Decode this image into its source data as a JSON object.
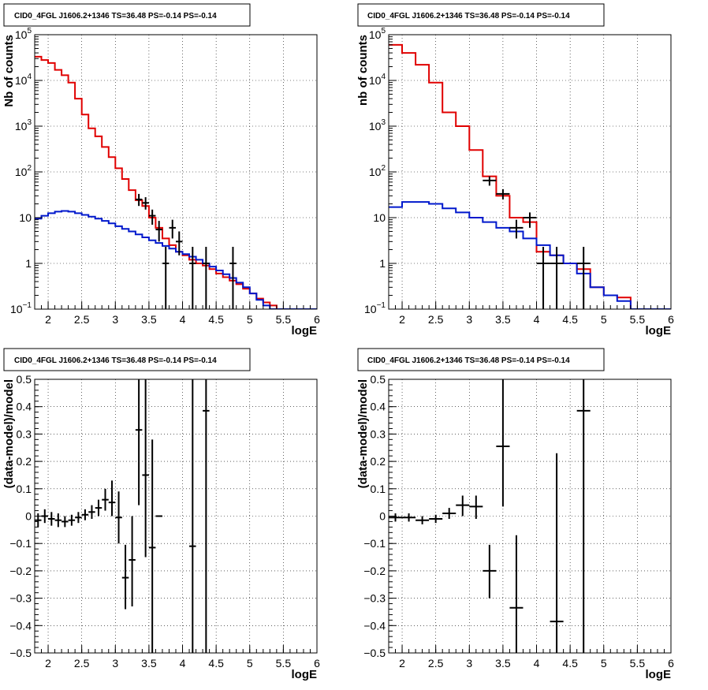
{
  "colors": {
    "model": "#e00000",
    "background": "#0018cc",
    "data": "#000000"
  },
  "charts": [
    {
      "kind": "spectrum",
      "title": "CID0_4FGL J1606.2+1346 TS=36.48 PS=-0.14 PS=-0.14",
      "xlabel": "logE",
      "ylabel": "Nb of counts",
      "xlim": [
        1.8,
        6.0
      ],
      "ylim": [
        0.1,
        100000
      ],
      "yscale": "log",
      "xticks": [
        "2",
        "2.5",
        "3",
        "3.5",
        "4",
        "4.5",
        "5",
        "5.5",
        "6"
      ],
      "yticks": [
        {
          "base": "10",
          "exp": "−1"
        },
        {
          "base": "1",
          "exp": ""
        },
        {
          "base": "10",
          "exp": ""
        },
        {
          "base": "10",
          "exp": "2"
        },
        {
          "base": "10",
          "exp": "3"
        },
        {
          "base": "10",
          "exp": "4"
        },
        {
          "base": "10",
          "exp": "5"
        }
      ]
    },
    {
      "kind": "spectrum",
      "title": "CID0_4FGL J1606.2+1346 TS=36.48 PS=-0.14 PS=-0.14",
      "xlabel": "logE",
      "ylabel": "nb of counts",
      "xlim": [
        1.8,
        6.0
      ],
      "ylim": [
        0.1,
        100000
      ],
      "yscale": "log",
      "xticks": [
        "2",
        "2.5",
        "3",
        "3.5",
        "4",
        "4.5",
        "5",
        "5.5",
        "6"
      ],
      "yticks": [
        {
          "base": "10",
          "exp": "−1"
        },
        {
          "base": "1",
          "exp": ""
        },
        {
          "base": "10",
          "exp": ""
        },
        {
          "base": "10",
          "exp": "2"
        },
        {
          "base": "10",
          "exp": "3"
        },
        {
          "base": "10",
          "exp": "4"
        },
        {
          "base": "10",
          "exp": "5"
        }
      ]
    },
    {
      "kind": "residual",
      "title": "CID0_4FGL J1606.2+1346 TS=36.48 PS=-0.14 PS=-0.14",
      "xlabel": "logE",
      "ylabel": "(data-model)/model",
      "xlim": [
        1.8,
        6.0
      ],
      "ylim": [
        -0.5,
        0.5
      ],
      "yscale": "linear",
      "xticks": [
        "2",
        "2.5",
        "3",
        "3.5",
        "4",
        "4.5",
        "5",
        "5.5",
        "6"
      ],
      "yticks": [
        "−0.5",
        "−0.4",
        "−0.3",
        "−0.2",
        "−0.1",
        "0",
        "0.1",
        "0.2",
        "0.3",
        "0.4",
        "0.5"
      ]
    },
    {
      "kind": "residual",
      "title": "CID0_4FGL J1606.2+1346 TS=36.48 PS=-0.14 PS=-0.14",
      "xlabel": "logE",
      "ylabel": "(data-model)/model",
      "xlim": [
        1.8,
        6.0
      ],
      "ylim": [
        -0.5,
        0.5
      ],
      "yscale": "linear",
      "xticks": [
        "2",
        "2.5",
        "3",
        "3.5",
        "4",
        "4.5",
        "5",
        "5.5",
        "6"
      ],
      "yticks": [
        "−0.5",
        "−0.4",
        "−0.3",
        "−0.2",
        "−0.1",
        "0",
        "0.1",
        "0.2",
        "0.3",
        "0.4",
        "0.5"
      ]
    }
  ],
  "chart_data": [
    {
      "type": "line",
      "title": "CID0_4FGL J1606.2+1346 TS=36.48 PS=-0.14 PS=-0.14",
      "xlabel": "logE",
      "ylabel": "Nb of counts",
      "xlim": [
        1.8,
        6.0
      ],
      "ylim": [
        0.1,
        100000
      ],
      "yscale": "log",
      "grid": true,
      "series": [
        {
          "style": "step",
          "color": "#e00000",
          "bin_edges": [
            1.8,
            1.9,
            2.0,
            2.1,
            2.2,
            2.3,
            2.4,
            2.5,
            2.6,
            2.7,
            2.8,
            2.9,
            3.0,
            3.1,
            3.2,
            3.3,
            3.4,
            3.5,
            3.6,
            3.7,
            3.8,
            3.9,
            4.0,
            4.1,
            4.2,
            4.3,
            4.4,
            4.5,
            4.6,
            4.7,
            4.8,
            4.9,
            5.0,
            5.1,
            5.2,
            5.3,
            5.4,
            5.5,
            5.6,
            5.7,
            5.8,
            5.9,
            6.0
          ],
          "values": [
            33000,
            28000,
            24000,
            17000,
            13000,
            9000,
            4000,
            1800,
            900,
            600,
            350,
            210,
            120,
            70,
            40,
            24,
            18,
            10,
            6,
            3.5,
            2.5,
            1.8,
            1.5,
            1.2,
            1.0,
            0.9,
            0.75,
            0.6,
            0.5,
            0.42,
            0.35,
            0.28,
            0.22,
            0.17,
            0.14,
            0.12,
            0.1,
            0.1,
            0.1,
            0.1,
            0.1,
            0.1
          ]
        },
        {
          "style": "step",
          "color": "#0018cc",
          "bin_edges": [
            1.8,
            1.9,
            2.0,
            2.1,
            2.2,
            2.3,
            2.4,
            2.5,
            2.6,
            2.7,
            2.8,
            2.9,
            3.0,
            3.1,
            3.2,
            3.3,
            3.4,
            3.5,
            3.6,
            3.7,
            3.8,
            3.9,
            4.0,
            4.1,
            4.2,
            4.3,
            4.4,
            4.5,
            4.6,
            4.7,
            4.8,
            4.9,
            5.0,
            5.1,
            5.2,
            5.3,
            5.4,
            5.5,
            5.6,
            5.7,
            5.8,
            5.9,
            6.0
          ],
          "values": [
            9.5,
            11,
            12.5,
            13.5,
            14,
            13.5,
            12.5,
            11.5,
            10.5,
            9.5,
            8.5,
            7.5,
            6.5,
            5.7,
            5.0,
            4.3,
            3.7,
            3.2,
            2.8,
            2.4,
            2.1,
            1.8,
            1.6,
            1.4,
            1.2,
            1.0,
            0.85,
            0.7,
            0.58,
            0.48,
            0.38,
            0.3,
            0.22,
            0.16,
            0.12,
            0.1,
            0.1,
            0.1,
            0.1,
            0.1,
            0.1,
            0.1
          ]
        },
        {
          "style": "errorbar",
          "color": "#000000",
          "x": [
            3.35,
            3.45,
            3.55,
            3.65,
            3.75,
            3.85,
            3.95,
            4.15,
            4.35,
            4.75
          ],
          "xerr": [
            0.05,
            0.05,
            0.05,
            0.05,
            0.05,
            0.05,
            0.05,
            0.05,
            0.05,
            0.05
          ],
          "y": [
            25,
            21,
            11,
            5.5,
            1,
            6,
            3,
            1,
            1,
            1
          ],
          "ylow": [
            18,
            15,
            7,
            3,
            0.1,
            3.5,
            1.5,
            0.1,
            0.1,
            0.1
          ],
          "yhigh": [
            33,
            28,
            15,
            8.5,
            2.3,
            9,
            5,
            2.3,
            2.3,
            2.3
          ]
        }
      ]
    },
    {
      "type": "line",
      "title": "CID0_4FGL J1606.2+1346 TS=36.48 PS=-0.14 PS=-0.14",
      "xlabel": "logE",
      "ylabel": "nb of counts",
      "xlim": [
        1.8,
        6.0
      ],
      "ylim": [
        0.1,
        100000
      ],
      "yscale": "log",
      "grid": true,
      "series": [
        {
          "style": "step",
          "color": "#e00000",
          "bin_edges": [
            1.8,
            2.0,
            2.2,
            2.4,
            2.6,
            2.8,
            3.0,
            3.2,
            3.4,
            3.6,
            3.8,
            4.0,
            4.2,
            4.4,
            4.6,
            4.8,
            5.0,
            5.2,
            5.4,
            5.6,
            5.8,
            6.0
          ],
          "values": [
            60000,
            40000,
            22000,
            9000,
            2000,
            1000,
            300,
            80,
            30,
            10,
            8,
            1.8,
            1.5,
            1.0,
            0.75,
            0.3,
            0.2,
            0.18,
            0.1,
            0.1,
            0.1
          ]
        },
        {
          "style": "step",
          "color": "#0018cc",
          "bin_edges": [
            1.8,
            2.0,
            2.2,
            2.4,
            2.6,
            2.8,
            3.0,
            3.2,
            3.4,
            3.6,
            3.8,
            4.0,
            4.2,
            4.4,
            4.6,
            4.8,
            5.0,
            5.2,
            5.4,
            5.6,
            5.8,
            6.0
          ],
          "values": [
            17,
            22,
            22,
            20,
            16,
            13,
            10,
            8,
            6,
            5,
            3.5,
            2.5,
            1.5,
            1.0,
            0.6,
            0.3,
            0.2,
            0.15,
            0.1,
            0.1,
            0.1
          ]
        },
        {
          "style": "errorbar",
          "color": "#000000",
          "x": [
            3.3,
            3.5,
            3.7,
            3.9,
            4.1,
            4.3,
            4.7
          ],
          "xerr": [
            0.1,
            0.1,
            0.1,
            0.1,
            0.1,
            0.1,
            0.1
          ],
          "y": [
            65,
            33,
            6,
            10,
            1,
            1,
            1
          ],
          "ylow": [
            50,
            25,
            3.5,
            6,
            0.1,
            0.1,
            0.1
          ],
          "yhigh": [
            80,
            42,
            9,
            13,
            2.3,
            2.3,
            2.3
          ]
        }
      ]
    },
    {
      "type": "scatter",
      "title": "CID0_4FGL J1606.2+1346 TS=36.48 PS=-0.14 PS=-0.14",
      "xlabel": "logE",
      "ylabel": "(data-model)/model",
      "xlim": [
        1.8,
        6.0
      ],
      "ylim": [
        -0.5,
        0.5
      ],
      "grid": true,
      "series": [
        {
          "style": "errorbar",
          "color": "#000000",
          "x": [
            1.85,
            1.95,
            2.05,
            2.15,
            2.25,
            2.35,
            2.45,
            2.55,
            2.65,
            2.75,
            2.85,
            2.95,
            3.05,
            3.15,
            3.25,
            3.35,
            3.45,
            3.55,
            3.65,
            4.15,
            4.35
          ],
          "xerr": [
            0.05,
            0.05,
            0.05,
            0.05,
            0.05,
            0.05,
            0.05,
            0.05,
            0.05,
            0.05,
            0.05,
            0.05,
            0.05,
            0.05,
            0.05,
            0.05,
            0.05,
            0.05,
            0.05,
            0.05,
            0.05
          ],
          "y": [
            -0.015,
            0.0,
            -0.01,
            -0.015,
            -0.02,
            -0.015,
            -0.005,
            0.005,
            0.015,
            0.03,
            0.06,
            0.05,
            -0.005,
            -0.225,
            -0.16,
            0.315,
            0.15,
            -0.115,
            0.0,
            -0.11,
            0.385
          ],
          "ylow": [
            -0.04,
            -0.025,
            -0.035,
            -0.04,
            -0.04,
            -0.035,
            -0.025,
            -0.015,
            -0.01,
            0.0,
            0.02,
            0.0,
            -0.1,
            -0.34,
            -0.33,
            0.04,
            -0.15,
            -0.5,
            0.0,
            -0.5,
            -0.5
          ],
          "yhigh": [
            0.01,
            0.025,
            0.015,
            0.01,
            0.0,
            0.005,
            0.015,
            0.025,
            0.04,
            0.06,
            0.1,
            0.13,
            0.09,
            -0.105,
            0.0,
            0.5,
            0.5,
            0.28,
            0.0,
            0.5,
            0.5
          ]
        }
      ]
    },
    {
      "type": "scatter",
      "title": "CID0_4FGL J1606.2+1346 TS=36.48 PS=-0.14 PS=-0.14",
      "xlabel": "logE",
      "ylabel": "(data-model)/model",
      "xlim": [
        1.8,
        6.0
      ],
      "ylim": [
        -0.5,
        0.5
      ],
      "grid": true,
      "series": [
        {
          "style": "errorbar",
          "color": "#000000",
          "x": [
            1.9,
            2.1,
            2.3,
            2.5,
            2.7,
            2.9,
            3.1,
            3.3,
            3.5,
            3.7,
            4.3,
            4.7
          ],
          "xerr": [
            0.1,
            0.1,
            0.1,
            0.1,
            0.1,
            0.1,
            0.1,
            0.1,
            0.1,
            0.1,
            0.1,
            0.1
          ],
          "y": [
            -0.005,
            -0.005,
            -0.015,
            -0.01,
            0.01,
            0.04,
            0.035,
            -0.2,
            0.255,
            -0.335,
            -0.385,
            0.385
          ],
          "ylow": [
            -0.02,
            -0.02,
            -0.03,
            -0.025,
            -0.01,
            0.0,
            -0.01,
            -0.3,
            0.035,
            -0.5,
            -0.5,
            -0.5
          ],
          "yhigh": [
            0.01,
            0.01,
            0.0,
            0.005,
            0.03,
            0.075,
            0.075,
            -0.105,
            0.5,
            -0.07,
            0.23,
            0.5
          ]
        }
      ]
    }
  ]
}
